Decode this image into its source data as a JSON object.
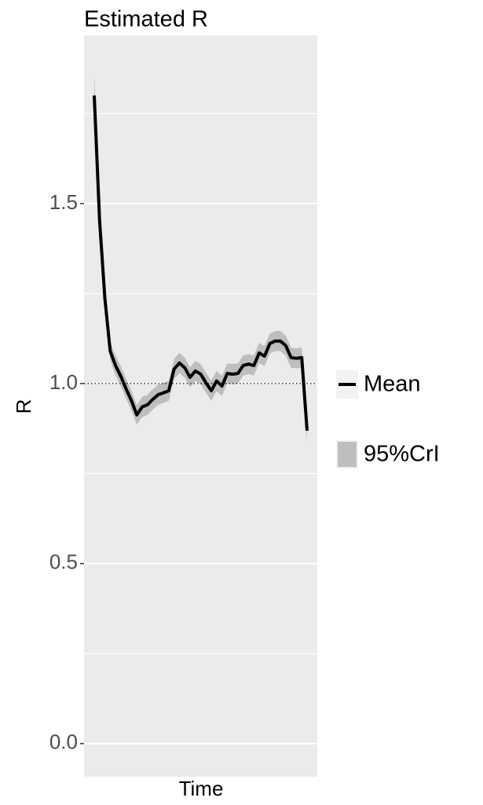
{
  "chart_data": {
    "type": "line",
    "title": "Estimated R",
    "x_label": "Time",
    "y_label": "R",
    "categories": [
      null,
      null,
      null,
      null,
      null,
      null,
      null,
      null,
      null,
      null,
      null,
      null,
      null,
      null,
      null,
      null,
      null,
      null,
      null,
      null,
      null,
      null,
      null,
      null,
      null,
      null,
      null,
      null,
      null,
      null,
      null,
      null,
      null,
      null,
      null,
      null,
      null,
      null,
      null,
      null,
      null
    ],
    "series": [
      {
        "name": "Mean",
        "color": "#000000",
        "values": [
          1.8,
          1.454,
          1.236,
          1.09,
          1.05,
          1.02,
          0.985,
          0.952,
          0.913,
          0.935,
          0.941,
          0.956,
          0.969,
          0.974,
          0.98,
          1.04,
          1.057,
          1.044,
          1.017,
          1.035,
          1.026,
          1.002,
          0.98,
          1.007,
          0.993,
          1.028,
          1.026,
          1.028,
          1.05,
          1.054,
          1.05,
          1.085,
          1.076,
          1.111,
          1.118,
          1.118,
          1.105,
          1.072,
          1.07,
          1.072,
          0.869
        ]
      },
      {
        "name": "95%CrI",
        "color": "#bebebe",
        "upper": [
          1.86,
          1.48,
          1.26,
          1.115,
          1.078,
          1.048,
          1.013,
          0.98,
          0.94,
          0.963,
          0.969,
          0.984,
          0.997,
          1.002,
          1.008,
          1.068,
          1.085,
          1.072,
          1.045,
          1.063,
          1.054,
          1.03,
          1.008,
          1.035,
          1.021,
          1.056,
          1.054,
          1.056,
          1.078,
          1.082,
          1.078,
          1.113,
          1.104,
          1.139,
          1.146,
          1.146,
          1.133,
          1.1,
          1.098,
          1.1,
          0.899
        ],
        "lower": [
          1.74,
          1.428,
          1.212,
          1.065,
          1.022,
          0.992,
          0.957,
          0.924,
          0.886,
          0.907,
          0.913,
          0.928,
          0.941,
          0.946,
          0.952,
          1.012,
          1.029,
          1.016,
          0.989,
          1.007,
          0.998,
          0.974,
          0.952,
          0.979,
          0.965,
          1.0,
          0.998,
          1.0,
          1.022,
          1.026,
          1.022,
          1.057,
          1.048,
          1.083,
          1.09,
          1.09,
          1.077,
          1.044,
          1.042,
          1.044,
          0.839
        ]
      }
    ],
    "reference_line": 1,
    "ylim": [
      -0.092,
      1.967
    ],
    "yticks": [
      {
        "value": 0,
        "label": "0.0"
      },
      0.5,
      {
        "value": 1,
        "label": "1.0"
      },
      1.5
    ],
    "minor_yticks": [
      0.25,
      0.75,
      1.25,
      1.75
    ],
    "grid": true,
    "panel_color": "#ebebeb",
    "legend_position": "right"
  }
}
